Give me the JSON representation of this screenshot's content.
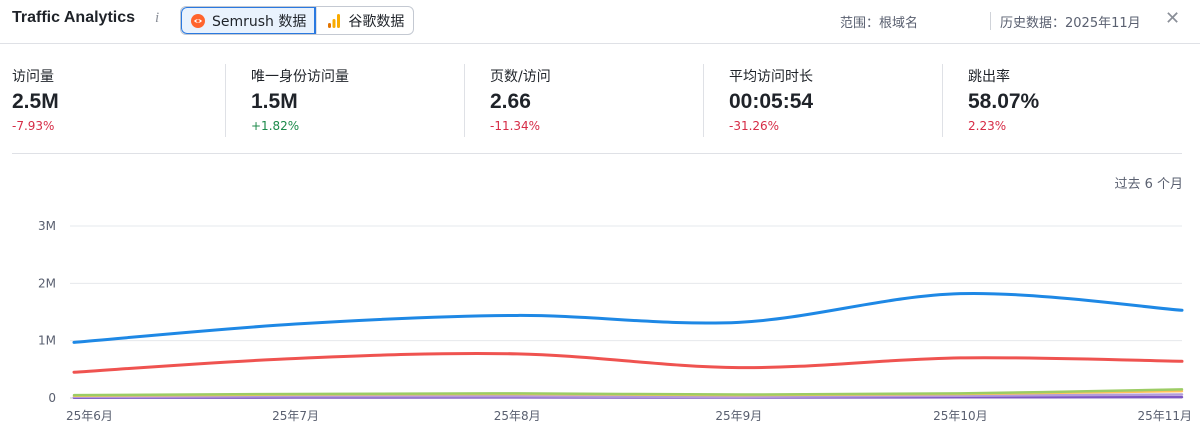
{
  "header": {
    "title": "Traffic Analytics",
    "info_icon": "i",
    "tabs": [
      {
        "label": "Semrush 数据",
        "icon": "semrush-icon",
        "active": true
      },
      {
        "label": "谷歌数据",
        "icon": "google-analytics-icon",
        "active": false
      }
    ],
    "scope": "范围：根域名",
    "history": "历史数据：2025年11月",
    "close_icon": "✕"
  },
  "metrics": [
    {
      "label": "访问量",
      "value": "2.5M",
      "change": "-7.93%",
      "trend": "down"
    },
    {
      "label": "唯一身份访问量",
      "value": "1.5M",
      "change": "+1.82%",
      "trend": "up"
    },
    {
      "label": "页数/访问",
      "value": "2.66",
      "change": "-11.34%",
      "trend": "down"
    },
    {
      "label": "平均访问时长",
      "value": "00:05:54",
      "change": "-31.26%",
      "trend": "down"
    },
    {
      "label": "跳出率",
      "value": "58.07%",
      "change": "2.23%",
      "trend": "down"
    }
  ],
  "period_label": "过去 6 个月",
  "colors": {
    "negative": "#d62c46",
    "positive": "#1c8a4a",
    "accent": "#2a79e0"
  },
  "chart_data": {
    "type": "line",
    "categories": [
      "25年6月",
      "25年7月",
      "25年8月",
      "25年9月",
      "25年10月",
      "25年11月"
    ],
    "yticks": [
      "0",
      "1M",
      "2M",
      "3M"
    ],
    "ylim": [
      0,
      3000000
    ],
    "grid": true,
    "series": [
      {
        "color": "#1e88e5",
        "values": [
          970000,
          1290000,
          1440000,
          1320000,
          1820000,
          1530000
        ]
      },
      {
        "color": "#ef5350",
        "values": [
          450000,
          690000,
          770000,
          530000,
          700000,
          640000
        ]
      },
      {
        "color": "#9ccc65",
        "values": [
          50000,
          70000,
          80000,
          60000,
          80000,
          150000
        ]
      },
      {
        "color": "#ffc35a",
        "values": [
          40000,
          60000,
          70000,
          50000,
          70000,
          120000
        ]
      },
      {
        "color": "#b39ddb",
        "values": [
          20000,
          30000,
          30000,
          20000,
          40000,
          60000
        ]
      },
      {
        "color": "#7e57c2",
        "values": [
          5000,
          8000,
          10000,
          8000,
          12000,
          15000
        ]
      }
    ]
  }
}
